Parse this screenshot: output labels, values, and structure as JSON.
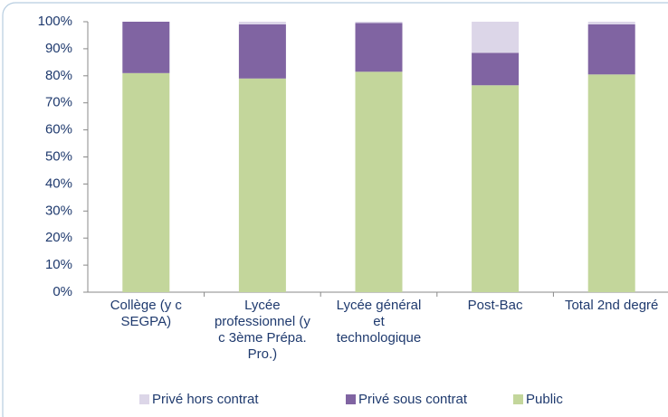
{
  "chart_data": {
    "type": "stacked_bar",
    "categories": [
      "Collège (y c SEGPA)",
      "Lycée professionnel (y c 3ème Prépa. Pro.)",
      "Lycée général et technologique",
      "Post-Bac",
      "Total 2nd degré"
    ],
    "series": [
      {
        "name": "Public",
        "color": "#c3d69b",
        "values": [
          81,
          79,
          81.5,
          76.5,
          80.5
        ]
      },
      {
        "name": "Privé sous contrat",
        "color": "#8064a2",
        "values": [
          19,
          20,
          18,
          12,
          18.5
        ]
      },
      {
        "name": "Privé hors contrat",
        "color": "#dcd6e8",
        "values": [
          0,
          1,
          0.5,
          11.5,
          1
        ]
      }
    ],
    "ylim": [
      0,
      100
    ],
    "yticks": [
      {
        "value": 0,
        "label": "0%"
      },
      {
        "value": 10,
        "label": "10%"
      },
      {
        "value": 20,
        "label": "20%"
      },
      {
        "value": 30,
        "label": "30%"
      },
      {
        "value": 40,
        "label": "40%"
      },
      {
        "value": 50,
        "label": "50%"
      },
      {
        "value": 60,
        "label": "60%"
      },
      {
        "value": 70,
        "label": "70%"
      },
      {
        "value": 80,
        "label": "80%"
      },
      {
        "value": 90,
        "label": "90%"
      },
      {
        "value": 100,
        "label": "100%"
      }
    ],
    "legend": "bottom"
  }
}
